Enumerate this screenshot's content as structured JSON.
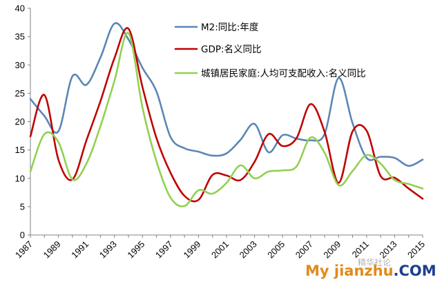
{
  "chart_data": {
    "type": "line",
    "title": "",
    "xlabel": "",
    "ylabel": "",
    "xlim": [
      1987,
      2015
    ],
    "ylim": [
      0,
      40
    ],
    "yticks": [
      0,
      5,
      10,
      15,
      20,
      25,
      30,
      35,
      40
    ],
    "xticks": [
      1987,
      1989,
      1991,
      1993,
      1995,
      1997,
      1999,
      2001,
      2003,
      2005,
      2007,
      2009,
      2011,
      2013,
      2015
    ],
    "grid": false,
    "legend_position": "top-right",
    "series": [
      {
        "name": "M2:同比:年度",
        "color": "#5b86b4",
        "x": [
          1987,
          1988,
          1989,
          1990,
          1991,
          1992,
          1993,
          1994,
          1995,
          1996,
          1997,
          1998,
          1999,
          2000,
          2001,
          2002,
          2003,
          2004,
          2005,
          2006,
          2007,
          2008,
          2009,
          2010,
          2011,
          2012,
          2013,
          2014,
          2015
        ],
        "values": [
          24.0,
          21.0,
          18.3,
          28.0,
          26.5,
          31.3,
          37.3,
          34.5,
          29.5,
          25.3,
          17.3,
          15.3,
          14.7,
          14.0,
          14.4,
          16.8,
          19.6,
          14.6,
          17.6,
          17.0,
          16.7,
          17.8,
          27.7,
          19.7,
          13.6,
          13.8,
          13.6,
          12.2,
          13.3
        ]
      },
      {
        "name": "GDP:名义同比",
        "color": "#c00000",
        "x": [
          1987,
          1988,
          1989,
          1990,
          1991,
          1992,
          1993,
          1994,
          1995,
          1996,
          1997,
          1998,
          1999,
          2000,
          2001,
          2002,
          2003,
          2004,
          2005,
          2006,
          2007,
          2008,
          2009,
          2010,
          2011,
          2012,
          2013,
          2014,
          2015
        ],
        "values": [
          17.4,
          24.7,
          13.3,
          9.8,
          16.7,
          23.6,
          31.2,
          36.4,
          26.1,
          17.1,
          11.0,
          6.9,
          6.2,
          10.6,
          10.5,
          9.7,
          12.9,
          17.8,
          15.7,
          17.1,
          23.1,
          18.2,
          9.2,
          18.3,
          18.4,
          10.4,
          10.1,
          8.2,
          6.4
        ]
      },
      {
        "name": "城镇居民家庭:人均可支配收入:名义同比",
        "color": "#92d050",
        "x": [
          1987,
          1988,
          1989,
          1990,
          1991,
          1992,
          1993,
          1994,
          1995,
          1996,
          1997,
          1998,
          1999,
          2000,
          2001,
          2002,
          2003,
          2004,
          2005,
          2006,
          2007,
          2008,
          2009,
          2010,
          2011,
          2012,
          2013,
          2014,
          2015
        ],
        "values": [
          11.2,
          17.8,
          16.4,
          9.8,
          12.6,
          19.2,
          27.2,
          35.6,
          22.5,
          13.0,
          6.6,
          5.1,
          7.9,
          7.3,
          9.2,
          12.3,
          10.0,
          11.2,
          11.4,
          12.1,
          17.2,
          14.5,
          8.8,
          11.3,
          14.1,
          12.6,
          9.7,
          9.0,
          8.2
        ]
      }
    ]
  },
  "watermark": {
    "channel_text": "精华社论",
    "brand_prefix": "My ",
    "brand_main": "jianzhu",
    "brand_suffix": ".COM"
  }
}
